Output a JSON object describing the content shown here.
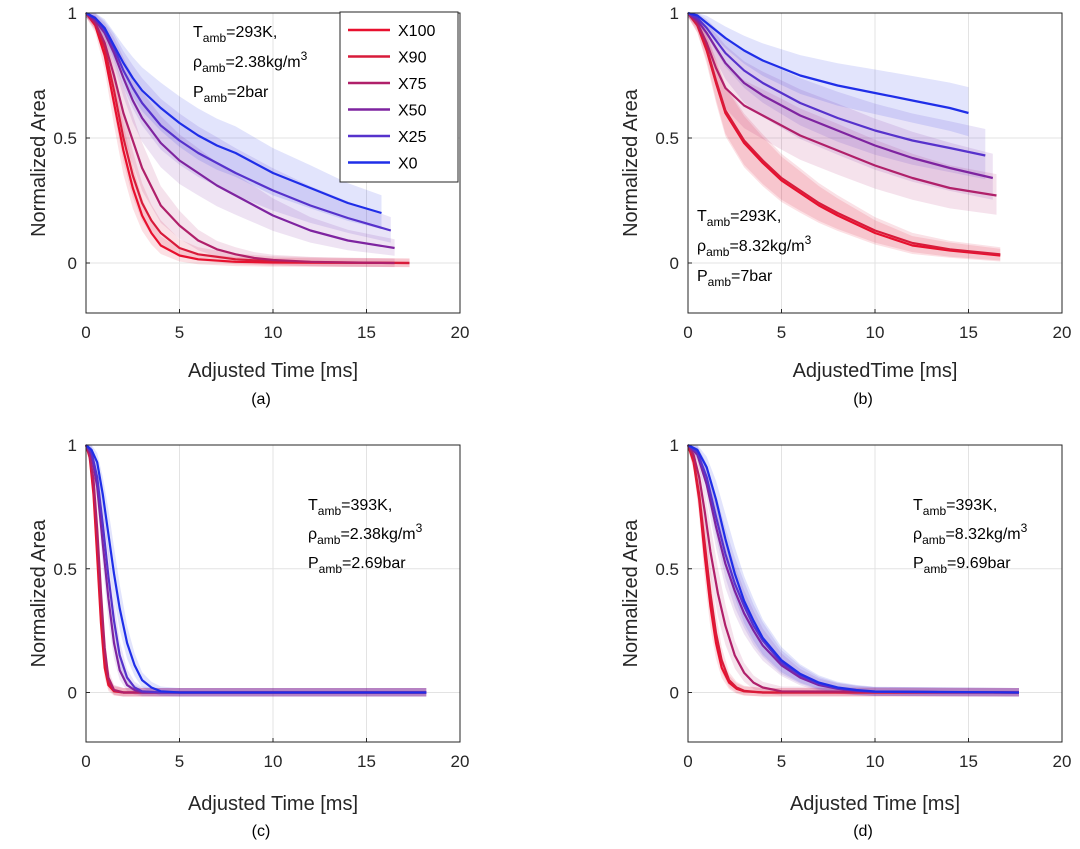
{
  "chart_data": [
    {
      "panel_label": "(a)",
      "type": "line",
      "xlabel": "Adjusted Time [ms]",
      "ylabel": "Normalized Area",
      "xlim": [
        0,
        20
      ],
      "ylim": [
        -0.2,
        1
      ],
      "xticks": [
        "0",
        "5",
        "10",
        "15",
        "20"
      ],
      "yticks": [
        "0",
        "0.5",
        "1"
      ],
      "grid": true,
      "annotation": {
        "t_main": "T",
        "t_sub": "amb",
        "t_val": "=293K,",
        "rho_main": "ρ",
        "rho_sub": "amb",
        "rho_val": "=2.38kg/m",
        "rho_sup": "3",
        "p_main": "P",
        "p_sub": "amb",
        "p_val": "=2bar"
      },
      "legend": {
        "position": "top-right",
        "entries": [
          "X100",
          "X90",
          "X75",
          "X50",
          "X25",
          "X0"
        ]
      },
      "series": [
        {
          "name": "X100",
          "color": "#e8102e",
          "x": [
            0,
            0.5,
            1,
            1.5,
            2,
            2.5,
            3,
            3.5,
            4,
            5,
            6,
            8,
            10,
            13,
            17.3
          ],
          "y": [
            1,
            0.95,
            0.83,
            0.64,
            0.45,
            0.3,
            0.19,
            0.12,
            0.07,
            0.03,
            0.015,
            0.005,
            0.002,
            0.001,
            0
          ]
        },
        {
          "name": "X90",
          "color": "#d81b3a",
          "x": [
            0,
            0.5,
            1,
            1.5,
            2,
            2.5,
            3,
            3.5,
            4,
            5,
            6,
            8,
            10,
            13,
            17.3
          ],
          "y": [
            1,
            0.96,
            0.86,
            0.69,
            0.5,
            0.35,
            0.24,
            0.17,
            0.12,
            0.06,
            0.035,
            0.015,
            0.007,
            0.003,
            0
          ]
        },
        {
          "name": "X75",
          "color": "#b0206a",
          "x": [
            0,
            0.5,
            1,
            1.5,
            2,
            3,
            4,
            5,
            6,
            7,
            8,
            9,
            10,
            12,
            14,
            16.5
          ],
          "y": [
            1,
            0.96,
            0.88,
            0.75,
            0.6,
            0.38,
            0.23,
            0.15,
            0.09,
            0.055,
            0.035,
            0.02,
            0.012,
            0.005,
            0.002,
            0
          ]
        },
        {
          "name": "X50",
          "color": "#7e24a0",
          "x": [
            0,
            0.5,
            1,
            1.5,
            2,
            2.5,
            3,
            4,
            5,
            6,
            7,
            8,
            10,
            12,
            14,
            16.5
          ],
          "y": [
            1,
            0.97,
            0.92,
            0.84,
            0.74,
            0.65,
            0.58,
            0.48,
            0.41,
            0.36,
            0.31,
            0.27,
            0.19,
            0.13,
            0.09,
            0.06
          ]
        },
        {
          "name": "X25",
          "color": "#5632cc",
          "x": [
            0,
            0.5,
            1,
            1.5,
            2,
            2.5,
            3,
            4,
            5,
            6,
            7,
            8,
            10,
            12,
            14,
            16.3
          ],
          "y": [
            1,
            0.98,
            0.93,
            0.86,
            0.77,
            0.7,
            0.64,
            0.55,
            0.49,
            0.44,
            0.4,
            0.36,
            0.29,
            0.23,
            0.18,
            0.13
          ]
        },
        {
          "name": "X0",
          "color": "#1f2ee8",
          "x": [
            0,
            0.5,
            1,
            1.5,
            2,
            2.5,
            3,
            4,
            5,
            6,
            7,
            8,
            10,
            12,
            14,
            15.8
          ],
          "y": [
            1,
            0.98,
            0.94,
            0.87,
            0.8,
            0.74,
            0.69,
            0.62,
            0.56,
            0.51,
            0.47,
            0.44,
            0.36,
            0.3,
            0.24,
            0.2
          ]
        }
      ]
    },
    {
      "panel_label": "(b)",
      "type": "line",
      "xlabel": "AdjustedTime [ms]",
      "ylabel": "Normalized Area",
      "xlim": [
        0,
        20
      ],
      "ylim": [
        -0.2,
        1
      ],
      "xticks": [
        "0",
        "5",
        "10",
        "15",
        "20"
      ],
      "yticks": [
        "0",
        "0.5",
        "1"
      ],
      "grid": true,
      "annotation": {
        "t_main": "T",
        "t_sub": "amb",
        "t_val": "=293K,",
        "rho_main": "ρ",
        "rho_sub": "amb",
        "rho_val": "=8.32kg/m",
        "rho_sup": "3",
        "p_main": "P",
        "p_sub": "amb",
        "p_val": "=7bar"
      },
      "series": [
        {
          "name": "X100",
          "color": "#e8102e",
          "x": [
            0,
            0.5,
            1,
            1.5,
            2,
            3,
            4,
            5,
            6,
            7,
            8,
            10,
            12,
            14,
            16.7
          ],
          "y": [
            1,
            0.95,
            0.85,
            0.72,
            0.6,
            0.48,
            0.4,
            0.33,
            0.28,
            0.23,
            0.19,
            0.12,
            0.07,
            0.05,
            0.03
          ]
        },
        {
          "name": "X90",
          "color": "#d81b3a",
          "x": [
            0,
            0.5,
            1,
            1.5,
            2,
            3,
            4,
            5,
            6,
            7,
            8,
            10,
            12,
            14,
            16.7
          ],
          "y": [
            1,
            0.95,
            0.86,
            0.73,
            0.61,
            0.49,
            0.41,
            0.34,
            0.29,
            0.24,
            0.2,
            0.13,
            0.08,
            0.055,
            0.035
          ]
        },
        {
          "name": "X75",
          "color": "#b0206a",
          "x": [
            0,
            0.5,
            1,
            1.5,
            2,
            3,
            4,
            5,
            6,
            8,
            10,
            12,
            14,
            16.5
          ],
          "y": [
            1,
            0.96,
            0.88,
            0.78,
            0.7,
            0.63,
            0.59,
            0.55,
            0.51,
            0.45,
            0.39,
            0.34,
            0.3,
            0.27
          ]
        },
        {
          "name": "X50",
          "color": "#7e24a0",
          "x": [
            0,
            0.5,
            1,
            1.5,
            2,
            3,
            4,
            5,
            6,
            8,
            10,
            12,
            14,
            16.3
          ],
          "y": [
            1,
            0.97,
            0.92,
            0.86,
            0.8,
            0.72,
            0.67,
            0.63,
            0.59,
            0.53,
            0.47,
            0.42,
            0.38,
            0.34
          ]
        },
        {
          "name": "X25",
          "color": "#5632cc",
          "x": [
            0,
            0.5,
            1,
            1.5,
            2,
            3,
            4,
            5,
            6,
            8,
            10,
            12,
            14,
            15.9
          ],
          "y": [
            1,
            0.98,
            0.94,
            0.89,
            0.84,
            0.77,
            0.72,
            0.68,
            0.64,
            0.58,
            0.53,
            0.49,
            0.46,
            0.43
          ]
        },
        {
          "name": "X0",
          "color": "#1f2ee8",
          "x": [
            0,
            0.5,
            1,
            1.5,
            2,
            3,
            4,
            5,
            6,
            8,
            10,
            12,
            14,
            15
          ],
          "y": [
            1,
            0.99,
            0.96,
            0.93,
            0.9,
            0.85,
            0.81,
            0.78,
            0.75,
            0.71,
            0.68,
            0.65,
            0.62,
            0.6
          ]
        }
      ]
    },
    {
      "panel_label": "(c)",
      "type": "line",
      "xlabel": "Adjusted Time [ms]",
      "ylabel": "Normalized Area",
      "xlim": [
        0,
        20
      ],
      "ylim": [
        -0.2,
        1
      ],
      "xticks": [
        "0",
        "5",
        "10",
        "15",
        "20"
      ],
      "yticks": [
        "0",
        "0.5",
        "1"
      ],
      "grid": true,
      "annotation": {
        "t_main": "T",
        "t_sub": "amb",
        "t_val": "=393K,",
        "rho_main": "ρ",
        "rho_sub": "amb",
        "rho_val": "=2.38kg/m",
        "rho_sup": "3",
        "p_main": "P",
        "p_sub": "amb",
        "p_val": "=2.69bar"
      },
      "series": [
        {
          "name": "X100",
          "color": "#e8102e",
          "x": [
            0,
            0.2,
            0.4,
            0.6,
            0.8,
            1,
            1.2,
            1.5,
            2,
            3,
            18.2
          ],
          "y": [
            1,
            0.95,
            0.8,
            0.55,
            0.28,
            0.1,
            0.03,
            0.005,
            0,
            0,
            0
          ]
        },
        {
          "name": "X90",
          "color": "#d81b3a",
          "x": [
            0,
            0.2,
            0.4,
            0.6,
            0.8,
            1,
            1.2,
            1.5,
            2,
            3,
            18.2
          ],
          "y": [
            1,
            0.96,
            0.83,
            0.6,
            0.33,
            0.13,
            0.04,
            0.008,
            0,
            0,
            0
          ]
        },
        {
          "name": "X75",
          "color": "#b0206a",
          "x": [
            0,
            0.2,
            0.4,
            0.6,
            0.8,
            1,
            1.2,
            1.5,
            2,
            3,
            18.2
          ],
          "y": [
            1,
            0.96,
            0.86,
            0.66,
            0.4,
            0.18,
            0.06,
            0.01,
            0,
            0,
            0
          ]
        },
        {
          "name": "X50",
          "color": "#7e24a0",
          "x": [
            0,
            0.3,
            0.6,
            0.9,
            1.2,
            1.5,
            1.8,
            2.2,
            2.6,
            3,
            4,
            18.2
          ],
          "y": [
            1,
            0.96,
            0.83,
            0.6,
            0.38,
            0.2,
            0.09,
            0.03,
            0.01,
            0,
            0,
            0
          ]
        },
        {
          "name": "X25",
          "color": "#5632cc",
          "x": [
            0,
            0.3,
            0.6,
            0.9,
            1.2,
            1.5,
            1.8,
            2.2,
            2.6,
            3,
            4,
            18.2
          ],
          "y": [
            1,
            0.97,
            0.87,
            0.68,
            0.47,
            0.29,
            0.15,
            0.06,
            0.02,
            0.005,
            0,
            0
          ]
        },
        {
          "name": "X0",
          "color": "#1f2ee8",
          "x": [
            0,
            0.3,
            0.6,
            0.9,
            1.2,
            1.5,
            1.8,
            2.2,
            2.6,
            3,
            3.5,
            4,
            5,
            18.2
          ],
          "y": [
            1,
            0.98,
            0.93,
            0.8,
            0.64,
            0.48,
            0.34,
            0.2,
            0.11,
            0.05,
            0.02,
            0.005,
            0,
            0
          ]
        }
      ]
    },
    {
      "panel_label": "(d)",
      "type": "line",
      "xlabel": "Adjusted Time [ms]",
      "ylabel": "Normalized Area",
      "xlim": [
        0,
        20
      ],
      "ylim": [
        -0.2,
        1
      ],
      "xticks": [
        "0",
        "5",
        "10",
        "15",
        "20"
      ],
      "yticks": [
        "0",
        "0.5",
        "1"
      ],
      "grid": true,
      "annotation": {
        "t_main": "T",
        "t_sub": "amb",
        "t_val": "=393K,",
        "rho_main": "ρ",
        "rho_sub": "amb",
        "rho_val": "=8.32kg/m",
        "rho_sup": "3",
        "p_main": "P",
        "p_sub": "amb",
        "p_val": "=9.69bar"
      },
      "series": [
        {
          "name": "X100",
          "color": "#e8102e",
          "x": [
            0,
            0.3,
            0.6,
            0.9,
            1.2,
            1.5,
            1.8,
            2.2,
            2.6,
            3,
            4,
            17.7
          ],
          "y": [
            1,
            0.93,
            0.78,
            0.55,
            0.35,
            0.2,
            0.1,
            0.04,
            0.015,
            0.005,
            0,
            0
          ]
        },
        {
          "name": "X90",
          "color": "#d81b3a",
          "x": [
            0,
            0.3,
            0.6,
            0.9,
            1.2,
            1.5,
            1.8,
            2.2,
            2.6,
            3,
            4,
            17.7
          ],
          "y": [
            1,
            0.94,
            0.8,
            0.6,
            0.4,
            0.24,
            0.13,
            0.05,
            0.02,
            0.007,
            0,
            0
          ]
        },
        {
          "name": "X75",
          "color": "#b0206a",
          "x": [
            0,
            0.3,
            0.6,
            0.9,
            1.2,
            1.6,
            2,
            2.5,
            3,
            3.5,
            4,
            5,
            17.7
          ],
          "y": [
            1,
            0.96,
            0.87,
            0.73,
            0.57,
            0.4,
            0.27,
            0.15,
            0.08,
            0.04,
            0.02,
            0.005,
            0
          ]
        },
        {
          "name": "X50",
          "color": "#7e24a0",
          "x": [
            0,
            0.5,
            1,
            1.5,
            2,
            2.5,
            3,
            3.5,
            4,
            5,
            6,
            7,
            8,
            9,
            10,
            17.7
          ],
          "y": [
            1,
            0.96,
            0.84,
            0.67,
            0.52,
            0.41,
            0.32,
            0.25,
            0.19,
            0.11,
            0.06,
            0.03,
            0.015,
            0.007,
            0.003,
            0
          ]
        },
        {
          "name": "X25",
          "color": "#5632cc",
          "x": [
            0,
            0.5,
            1,
            1.5,
            2,
            2.5,
            3,
            3.5,
            4,
            5,
            6,
            7,
            8,
            9,
            10,
            17.7
          ],
          "y": [
            1,
            0.97,
            0.87,
            0.71,
            0.56,
            0.44,
            0.35,
            0.27,
            0.21,
            0.12,
            0.07,
            0.035,
            0.017,
            0.008,
            0.003,
            0
          ]
        },
        {
          "name": "X0",
          "color": "#1f2ee8",
          "x": [
            0,
            0.5,
            1,
            1.5,
            2,
            2.5,
            3,
            3.5,
            4,
            5,
            6,
            7,
            8,
            9,
            10,
            17.7
          ],
          "y": [
            1,
            0.98,
            0.91,
            0.78,
            0.62,
            0.48,
            0.37,
            0.29,
            0.22,
            0.13,
            0.075,
            0.04,
            0.02,
            0.01,
            0.004,
            0
          ]
        }
      ]
    }
  ]
}
